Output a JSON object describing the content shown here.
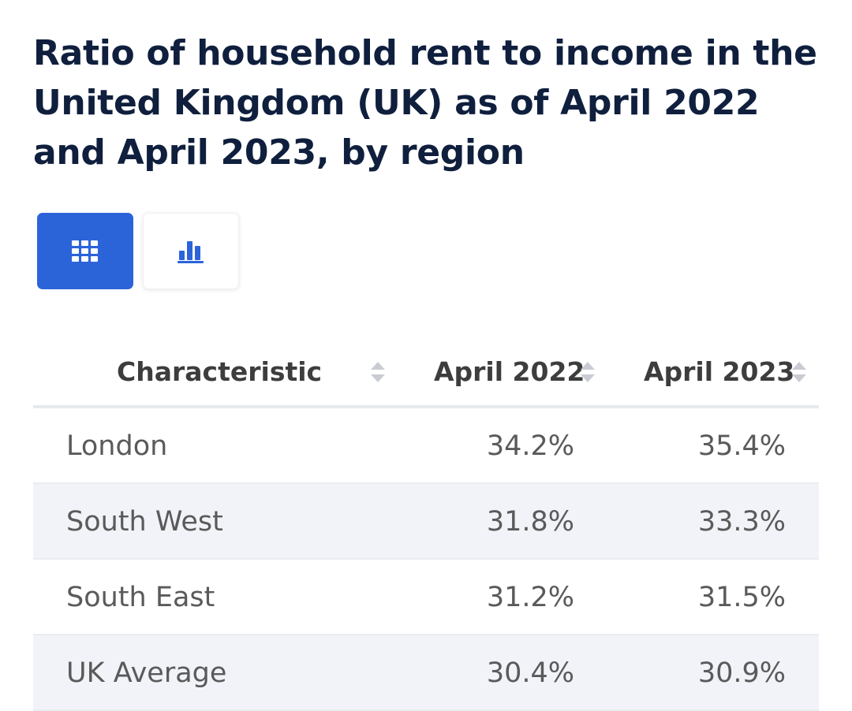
{
  "chart": {
    "title": "Ratio of household rent to income in the United Kingdom (UK) as of April 2022 and April 2023, by region"
  },
  "view_toggle": {
    "table_icon": "grid-icon",
    "chart_icon": "bar-chart-icon",
    "active": "table",
    "accent_color": "#2b63d9"
  },
  "table": {
    "headers": [
      "Characteristic",
      "April 2022",
      "April 2023"
    ],
    "rows": [
      [
        "London",
        "34.2%",
        "35.4%"
      ],
      [
        "South West",
        "31.8%",
        "33.3%"
      ],
      [
        "South East",
        "31.2%",
        "31.5%"
      ],
      [
        "UK Average",
        "30.4%",
        "30.9%"
      ]
    ]
  },
  "chart_data": {
    "type": "table",
    "title": "Ratio of household rent to income in the United Kingdom (UK) as of April 2022 and April 2023, by region",
    "categories": [
      "London",
      "South West",
      "South East",
      "UK Average"
    ],
    "series": [
      {
        "name": "April 2022",
        "values": [
          34.2,
          31.8,
          31.2,
          30.4
        ]
      },
      {
        "name": "April 2023",
        "values": [
          35.4,
          33.3,
          31.5,
          30.9
        ]
      }
    ],
    "unit": "%"
  }
}
